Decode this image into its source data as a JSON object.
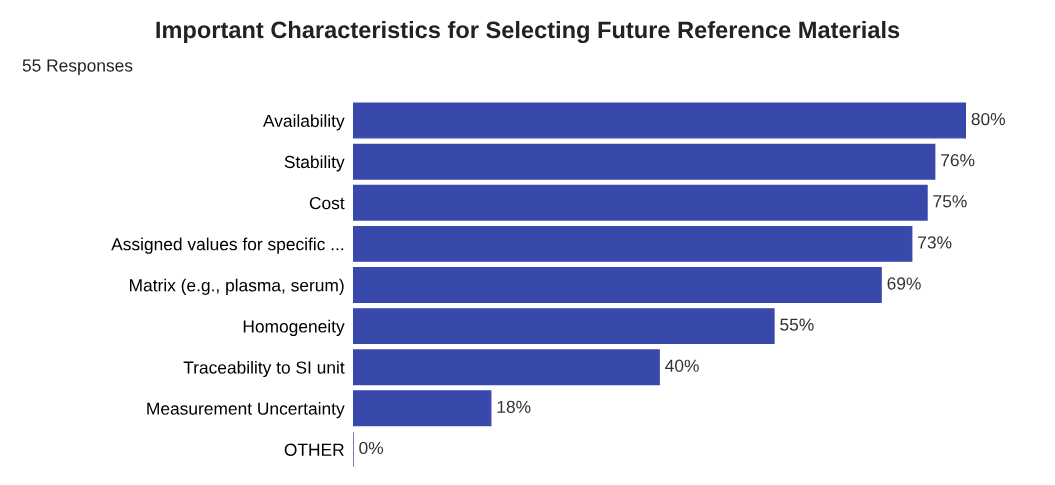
{
  "chart_data": {
    "type": "bar",
    "orientation": "horizontal",
    "title": "Important Characteristics for Selecting Future Reference Materials",
    "subtitle": "55 Responses",
    "categories": [
      "Availability",
      "Stability",
      "Cost",
      "Assigned values for specific ...",
      "Matrix (e.g., plasma, serum)",
      "Homogeneity",
      "Traceability to SI unit",
      "Measurement Uncertainty",
      "OTHER"
    ],
    "values": [
      80,
      76,
      75,
      73,
      69,
      55,
      40,
      18,
      0
    ],
    "value_labels": [
      "80%",
      "76%",
      "75%",
      "73%",
      "69%",
      "55%",
      "40%",
      "18%",
      "0%"
    ],
    "color": "#3949ab",
    "grid": false,
    "legend": false,
    "tick_labels": "y"
  }
}
